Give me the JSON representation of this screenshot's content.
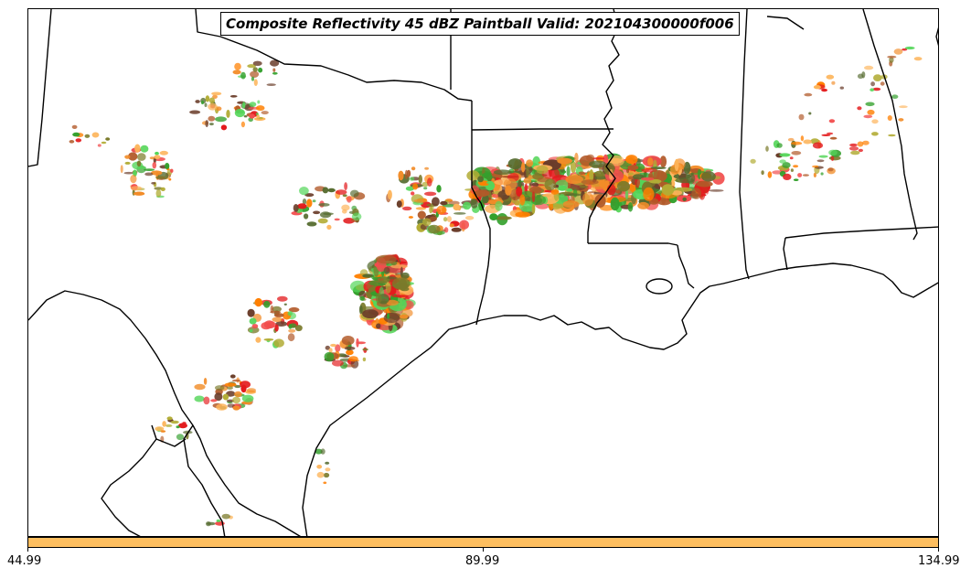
{
  "title": "Composite Reflectivity 45 dBZ Paintball Valid: 202104300000f006",
  "colorbar": {
    "color": "#FDBE5F",
    "ticks": [
      "44.99",
      "89.99",
      "134.99"
    ]
  },
  "member_colors": [
    "#E31A1C",
    "#FF7F00",
    "#33A02C",
    "#B15928",
    "#6A3D2A",
    "#B2AC35",
    "#F28C28",
    "#55D65A",
    "#F24D4D",
    "#FDB45A",
    "#7A7A2A",
    "#556B2F"
  ],
  "boundary_color": "#000000"
}
